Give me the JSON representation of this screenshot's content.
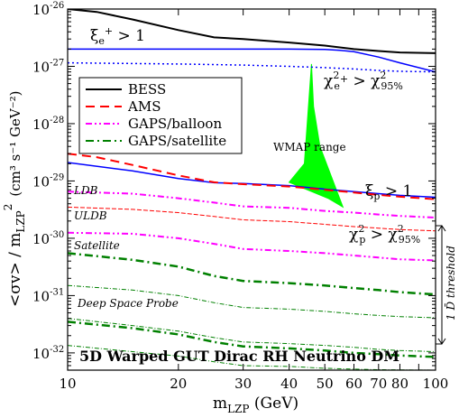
{
  "chart_data": {
    "type": "line",
    "title": "5D Warped GUT Dirac RH Neutrino DM",
    "xlabel": {
      "main": "m",
      "sub": "LZP",
      "unit": " (GeV)"
    },
    "ylabel": {
      "text": "<σv> / m",
      "sub": "LZP",
      "sup": "2",
      "unit": "(cm³ s⁻¹ GeV⁻²)"
    },
    "x_scale": "log",
    "y_scale": "log",
    "xlim": [
      10,
      100
    ],
    "ylim": [
      5e-33,
      1e-26
    ],
    "x_ticks": [
      10,
      20,
      30,
      40,
      50,
      60,
      70,
      80,
      90,
      100
    ],
    "x_tick_labels": [
      {
        "value": 10,
        "label": "10"
      },
      {
        "value": 20,
        "label": "20"
      },
      {
        "value": 30,
        "label": "30"
      },
      {
        "value": 40,
        "label": "40"
      },
      {
        "value": 50,
        "label": "50"
      },
      {
        "value": 60,
        "label": "60"
      },
      {
        "value": 70,
        "label": "70"
      },
      {
        "value": 80,
        "label": "80"
      },
      {
        "value": 100,
        "label": "100"
      }
    ],
    "y_tick_labels": [
      {
        "value": 1e-26,
        "mant": "10",
        "exp": "-26"
      },
      {
        "value": 1e-27,
        "mant": "10",
        "exp": "-27"
      },
      {
        "value": 1e-28,
        "mant": "10",
        "exp": "-28"
      },
      {
        "value": 1e-29,
        "mant": "10",
        "exp": "-29"
      },
      {
        "value": 1e-30,
        "mant": "10",
        "exp": "-30"
      },
      {
        "value": 1e-31,
        "mant": "10",
        "exp": "-31"
      },
      {
        "value": 1e-32,
        "mant": "10",
        "exp": "-32"
      }
    ],
    "legend": {
      "placement": "upper-left",
      "entries": [
        {
          "label": "BESS",
          "color": "#000000",
          "dash": ""
        },
        {
          "label": "AMS",
          "color": "#ff0000",
          "dash": "10,6"
        },
        {
          "label": "GAPS/balloon",
          "color": "#ff00ff",
          "dash": "7,3,2,3,2,3"
        },
        {
          "label": "GAPS/satellite",
          "color": "#008000",
          "dash": "9,4,2,4"
        }
      ]
    },
    "series": [
      {
        "name": "BESS",
        "color": "#000000",
        "dash": "",
        "width": 2,
        "x": [
          10,
          12,
          15,
          20,
          25,
          30,
          40,
          50,
          60,
          70,
          80,
          100
        ],
        "y": [
          1e-26,
          8.9e-27,
          6.6e-27,
          4.3e-27,
          3.2e-27,
          3e-27,
          2.6e-27,
          2.3e-27,
          2e-27,
          1.85e-27,
          1.75e-27,
          1.7e-27
        ]
      },
      {
        "name": "AMS",
        "color": "#ff0000",
        "dash": "10,6",
        "width": 2,
        "x": [
          10,
          12,
          15,
          20,
          25,
          30,
          40,
          50,
          60,
          70,
          80,
          100
        ],
        "y": [
          3e-29,
          2.6e-29,
          1.9e-29,
          1.25e-29,
          9.5e-30,
          8.8e-30,
          8e-30,
          7e-30,
          6.3e-30,
          5.7e-30,
          5.3e-30,
          4.8e-30
        ]
      },
      {
        "name": "GAPS/balloon LDB",
        "color": "#ff00ff",
        "dash": "7,3,2,3,2,3",
        "width": 2,
        "x": [
          10,
          15,
          20,
          25,
          30,
          40,
          50,
          60,
          70,
          80,
          100
        ],
        "y": [
          6.5e-30,
          6e-30,
          5e-30,
          4.2e-30,
          3.6e-30,
          3.4e-30,
          3e-30,
          2.8e-30,
          2.6e-30,
          2.45e-30,
          2.3e-30
        ]
      },
      {
        "name": "GAPS/balloon ULDB",
        "color": "#ff00ff",
        "dash": "7,3,2,3,2,3",
        "width": 2,
        "x": [
          10,
          15,
          20,
          25,
          30,
          40,
          50,
          60,
          70,
          80,
          100
        ],
        "y": [
          1.25e-30,
          1.2e-30,
          1e-30,
          8e-31,
          6.5e-31,
          6e-31,
          5.5e-31,
          5e-31,
          4.6e-31,
          4.3e-31,
          4.1e-31
        ]
      },
      {
        "name": "GAPS/satellite Satellite",
        "color": "#008000",
        "dash": "9,4,2,4",
        "width": 2.5,
        "x": [
          10,
          15,
          20,
          25,
          30,
          40,
          50,
          60,
          70,
          80,
          100
        ],
        "y": [
          5.5e-31,
          4.2e-31,
          3.2e-31,
          2.2e-31,
          1.8e-31,
          1.65e-31,
          1.5e-31,
          1.35e-31,
          1.25e-31,
          1.15e-31,
          1.05e-31
        ]
      },
      {
        "name": "GAPS/satellite Deep Space Probe",
        "color": "#008000",
        "dash": "9,4,2,4",
        "width": 2.5,
        "x": [
          10,
          15,
          20,
          25,
          30,
          40,
          50,
          60,
          70,
          80,
          100
        ],
        "y": [
          3.5e-32,
          2.7e-32,
          2.1e-32,
          1.55e-32,
          1.3e-32,
          1.2e-32,
          1.1e-32,
          1e-32,
          9.5e-33,
          9e-33,
          8.5e-33
        ]
      }
    ],
    "thin_curves": [
      {
        "color": "#ff0000",
        "dash": "5,2",
        "width": 1,
        "x": [
          10,
          15,
          20,
          25,
          30,
          40,
          50,
          60,
          70,
          80,
          100
        ],
        "y": [
          3.5e-30,
          3.2e-30,
          2.8e-30,
          2.4e-30,
          2.1e-30,
          1.95e-30,
          1.75e-30,
          1.6e-30,
          1.5e-30,
          1.42e-30,
          1.35e-30
        ]
      },
      {
        "color": "#008000",
        "dash": "5,2,1,2",
        "width": 1,
        "x": [
          10,
          15,
          20,
          25,
          30,
          40,
          50,
          60,
          70,
          80,
          100
        ],
        "y": [
          1.5e-31,
          1.25e-31,
          1e-31,
          7.5e-32,
          6.2e-32,
          5.8e-32,
          5.3e-32,
          4.8e-32,
          4.5e-32,
          4.3e-32,
          4.1e-32
        ]
      },
      {
        "color": "#008000",
        "dash": "5,2,1,2",
        "width": 1,
        "x": [
          10,
          15,
          20,
          25,
          30,
          40,
          50,
          60,
          70,
          80,
          100
        ],
        "y": [
          4e-32,
          3e-32,
          2.4e-32,
          1.85e-32,
          1.55e-32,
          1.45e-32,
          1.35e-32,
          1.25e-32,
          1.15e-32,
          1.1e-32,
          1.05e-32
        ]
      },
      {
        "color": "#008000",
        "dash": "5,2,1,2",
        "width": 1,
        "x": [
          10,
          15,
          20,
          25,
          30,
          40,
          50,
          60,
          70,
          80,
          100
        ],
        "y": [
          1.35e-32,
          1.05e-32,
          8.8e-33,
          7e-33,
          6e-33,
          5.8e-33,
          5.4e-33,
          5.2e-33,
          5.1e-33,
          5.05e-33,
          5e-33
        ]
      }
    ],
    "positron_bounds": [
      {
        "color": "#0000ff",
        "dash": "",
        "width": 1.5,
        "x": [
          10,
          20,
          30,
          40,
          50,
          55,
          60,
          70,
          80,
          100
        ],
        "y": [
          2e-27,
          2e-27,
          2e-27,
          2e-27,
          1.97e-27,
          1.9e-27,
          1.8e-27,
          1.45e-27,
          1.15e-27,
          8e-28
        ]
      },
      {
        "color": "#0000ff",
        "dash": "2,3",
        "width": 1.5,
        "x": [
          10,
          20,
          30,
          40,
          50,
          60,
          70,
          80,
          100
        ],
        "y": [
          1.15e-27,
          1.1e-27,
          1.05e-27,
          1e-27,
          9.5e-28,
          9e-28,
          8.5e-28,
          8.2e-28,
          8e-28
        ]
      }
    ],
    "antiproton_bound": {
      "color": "#0000ff",
      "dash": "",
      "width": 1.5,
      "x": [
        10,
        15,
        20,
        25,
        30,
        40,
        50,
        60,
        70,
        80,
        100
      ],
      "y": [
        2.1e-29,
        1.5e-29,
        1.1e-29,
        9.3e-30,
        9e-30,
        8.3e-30,
        7.2e-30,
        6.5e-30,
        6e-30,
        5.6e-30,
        5.2e-30
      ]
    },
    "wmap_region": {
      "label": "WMAP range",
      "color": "#00ff00",
      "x": [
        46.0,
        46.6,
        48.5,
        56.0,
        51.0,
        40.0,
        44.0
      ],
      "y": [
        1.1e-27,
        2e-28,
        4e-29,
        3.5e-30,
        5e-30,
        9.5e-30,
        2e-29
      ]
    },
    "annotations": {
      "xi_e": {
        "main": "ξ",
        "sub": "e",
        "sup": "+",
        "rest": " > 1"
      },
      "chi_e": {
        "main": "χ",
        "sup1": "2",
        "sub1": "e",
        "sup1b": "+",
        "mid": " > χ",
        "sup2": "2",
        "sub2": "95%"
      },
      "xi_p": {
        "main": "ξ",
        "sub": "p",
        "rest": " > 1"
      },
      "chi_p": {
        "main": "χ",
        "sup1": "2",
        "sub1": "p",
        "mid": " > χ",
        "sup2": "2",
        "sub2": "95%"
      },
      "ldb": "LDB",
      "uldb": "ULDB",
      "satellite": "Satellite",
      "deep_space": "Deep Space Probe",
      "threshold": "1 D̄ threshold"
    }
  }
}
